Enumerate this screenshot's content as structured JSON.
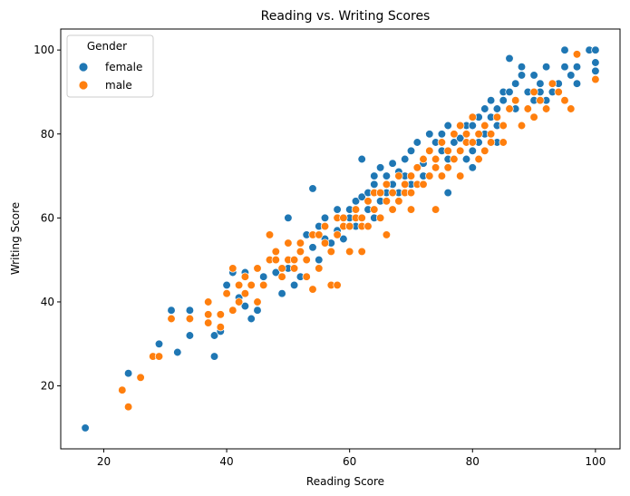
{
  "chart_data": {
    "type": "scatter",
    "title": "Reading vs. Writing Scores",
    "xlabel": "Reading Score",
    "ylabel": "Writing Score",
    "xlim": [
      13,
      104
    ],
    "ylim": [
      5,
      105
    ],
    "xticks": [
      20,
      40,
      60,
      80,
      100
    ],
    "yticks": [
      20,
      40,
      60,
      80,
      100
    ],
    "grid": false,
    "legend": {
      "title": "Gender",
      "placement": "top-left"
    },
    "series": [
      {
        "name": "female",
        "color": "#1f77b4",
        "points": [
          [
            17,
            10
          ],
          [
            24,
            23
          ],
          [
            29,
            30
          ],
          [
            31,
            38
          ],
          [
            32,
            28
          ],
          [
            34,
            32
          ],
          [
            34,
            38
          ],
          [
            38,
            27
          ],
          [
            38,
            32
          ],
          [
            39,
            33
          ],
          [
            40,
            44
          ],
          [
            41,
            47
          ],
          [
            42,
            41
          ],
          [
            43,
            39
          ],
          [
            43,
            47
          ],
          [
            44,
            36
          ],
          [
            45,
            38
          ],
          [
            46,
            46
          ],
          [
            48,
            47
          ],
          [
            49,
            42
          ],
          [
            50,
            60
          ],
          [
            50,
            48
          ],
          [
            51,
            44
          ],
          [
            52,
            52
          ],
          [
            52,
            46
          ],
          [
            53,
            56
          ],
          [
            54,
            53
          ],
          [
            54,
            67
          ],
          [
            55,
            50
          ],
          [
            55,
            58
          ],
          [
            56,
            55
          ],
          [
            56,
            60
          ],
          [
            57,
            54
          ],
          [
            57,
            52
          ],
          [
            58,
            57
          ],
          [
            58,
            62
          ],
          [
            59,
            55
          ],
          [
            59,
            58
          ],
          [
            60,
            62
          ],
          [
            60,
            60
          ],
          [
            61,
            64
          ],
          [
            61,
            58
          ],
          [
            62,
            60
          ],
          [
            62,
            65
          ],
          [
            62,
            74
          ],
          [
            63,
            66
          ],
          [
            63,
            62
          ],
          [
            64,
            68
          ],
          [
            64,
            70
          ],
          [
            64,
            60
          ],
          [
            65,
            72
          ],
          [
            65,
            64
          ],
          [
            66,
            66
          ],
          [
            66,
            70
          ],
          [
            67,
            68
          ],
          [
            67,
            73
          ],
          [
            68,
            71
          ],
          [
            68,
            66
          ],
          [
            69,
            70
          ],
          [
            69,
            74
          ],
          [
            70,
            68
          ],
          [
            70,
            76
          ],
          [
            71,
            72
          ],
          [
            71,
            78
          ],
          [
            72,
            73
          ],
          [
            72,
            70
          ],
          [
            73,
            76
          ],
          [
            73,
            80
          ],
          [
            74,
            78
          ],
          [
            74,
            72
          ],
          [
            75,
            80
          ],
          [
            75,
            76
          ],
          [
            76,
            82
          ],
          [
            76,
            74
          ],
          [
            77,
            78
          ],
          [
            77,
            80
          ],
          [
            78,
            79
          ],
          [
            78,
            76
          ],
          [
            79,
            82
          ],
          [
            79,
            74
          ],
          [
            80,
            82
          ],
          [
            80,
            76
          ],
          [
            81,
            84
          ],
          [
            81,
            78
          ],
          [
            82,
            86
          ],
          [
            82,
            80
          ],
          [
            83,
            88
          ],
          [
            83,
            84
          ],
          [
            84,
            86
          ],
          [
            84,
            82
          ],
          [
            85,
            88
          ],
          [
            85,
            90
          ],
          [
            86,
            90
          ],
          [
            86,
            98
          ],
          [
            87,
            92
          ],
          [
            87,
            86
          ],
          [
            88,
            94
          ],
          [
            88,
            96
          ],
          [
            89,
            90
          ],
          [
            89,
            86
          ],
          [
            90,
            94
          ],
          [
            90,
            88
          ],
          [
            91,
            92
          ],
          [
            91,
            90
          ],
          [
            92,
            96
          ],
          [
            92,
            88
          ],
          [
            93,
            90
          ],
          [
            94,
            92
          ],
          [
            95,
            100
          ],
          [
            95,
            96
          ],
          [
            96,
            94
          ],
          [
            97,
            96
          ],
          [
            97,
            92
          ],
          [
            99,
            100
          ],
          [
            100,
            100
          ],
          [
            100,
            97
          ],
          [
            100,
            95
          ],
          [
            76,
            66
          ],
          [
            80,
            72
          ],
          [
            84,
            78
          ]
        ]
      },
      {
        "name": "male",
        "color": "#ff7f0e",
        "points": [
          [
            23,
            19
          ],
          [
            24,
            15
          ],
          [
            26,
            22
          ],
          [
            28,
            27
          ],
          [
            29,
            27
          ],
          [
            31,
            36
          ],
          [
            34,
            36
          ],
          [
            37,
            40
          ],
          [
            37,
            37
          ],
          [
            37,
            35
          ],
          [
            39,
            37
          ],
          [
            39,
            34
          ],
          [
            40,
            42
          ],
          [
            41,
            48
          ],
          [
            41,
            38
          ],
          [
            42,
            44
          ],
          [
            42,
            40
          ],
          [
            43,
            46
          ],
          [
            43,
            42
          ],
          [
            44,
            44
          ],
          [
            45,
            40
          ],
          [
            45,
            48
          ],
          [
            46,
            44
          ],
          [
            47,
            50
          ],
          [
            47,
            56
          ],
          [
            48,
            50
          ],
          [
            48,
            52
          ],
          [
            49,
            48
          ],
          [
            49,
            46
          ],
          [
            50,
            50
          ],
          [
            50,
            54
          ],
          [
            51,
            50
          ],
          [
            51,
            48
          ],
          [
            52,
            52
          ],
          [
            52,
            54
          ],
          [
            53,
            46
          ],
          [
            53,
            50
          ],
          [
            54,
            56
          ],
          [
            54,
            43
          ],
          [
            55,
            56
          ],
          [
            55,
            48
          ],
          [
            56,
            54
          ],
          [
            56,
            58
          ],
          [
            57,
            52
          ],
          [
            57,
            44
          ],
          [
            58,
            56
          ],
          [
            58,
            60
          ],
          [
            59,
            58
          ],
          [
            59,
            60
          ],
          [
            60,
            52
          ],
          [
            60,
            58
          ],
          [
            61,
            60
          ],
          [
            61,
            62
          ],
          [
            62,
            60
          ],
          [
            62,
            58
          ],
          [
            63,
            64
          ],
          [
            63,
            58
          ],
          [
            64,
            62
          ],
          [
            64,
            66
          ],
          [
            65,
            60
          ],
          [
            65,
            66
          ],
          [
            66,
            64
          ],
          [
            66,
            68
          ],
          [
            67,
            66
          ],
          [
            67,
            62
          ],
          [
            68,
            70
          ],
          [
            68,
            64
          ],
          [
            69,
            68
          ],
          [
            69,
            66
          ],
          [
            70,
            70
          ],
          [
            70,
            66
          ],
          [
            71,
            72
          ],
          [
            71,
            68
          ],
          [
            72,
            74
          ],
          [
            72,
            68
          ],
          [
            73,
            76
          ],
          [
            73,
            70
          ],
          [
            74,
            74
          ],
          [
            74,
            72
          ],
          [
            75,
            78
          ],
          [
            75,
            70
          ],
          [
            76,
            76
          ],
          [
            76,
            72
          ],
          [
            77,
            80
          ],
          [
            77,
            74
          ],
          [
            78,
            76
          ],
          [
            78,
            82
          ],
          [
            79,
            80
          ],
          [
            79,
            78
          ],
          [
            80,
            78
          ],
          [
            80,
            84
          ],
          [
            81,
            80
          ],
          [
            81,
            74
          ],
          [
            82,
            82
          ],
          [
            82,
            76
          ],
          [
            83,
            80
          ],
          [
            83,
            78
          ],
          [
            84,
            84
          ],
          [
            85,
            82
          ],
          [
            85,
            78
          ],
          [
            86,
            86
          ],
          [
            87,
            88
          ],
          [
            88,
            82
          ],
          [
            89,
            86
          ],
          [
            90,
            90
          ],
          [
            90,
            84
          ],
          [
            91,
            88
          ],
          [
            92,
            86
          ],
          [
            93,
            92
          ],
          [
            94,
            90
          ],
          [
            95,
            88
          ],
          [
            96,
            86
          ],
          [
            97,
            99
          ],
          [
            100,
            93
          ],
          [
            58,
            44
          ],
          [
            62,
            52
          ],
          [
            66,
            56
          ],
          [
            70,
            62
          ],
          [
            74,
            62
          ],
          [
            78,
            70
          ]
        ]
      }
    ]
  }
}
